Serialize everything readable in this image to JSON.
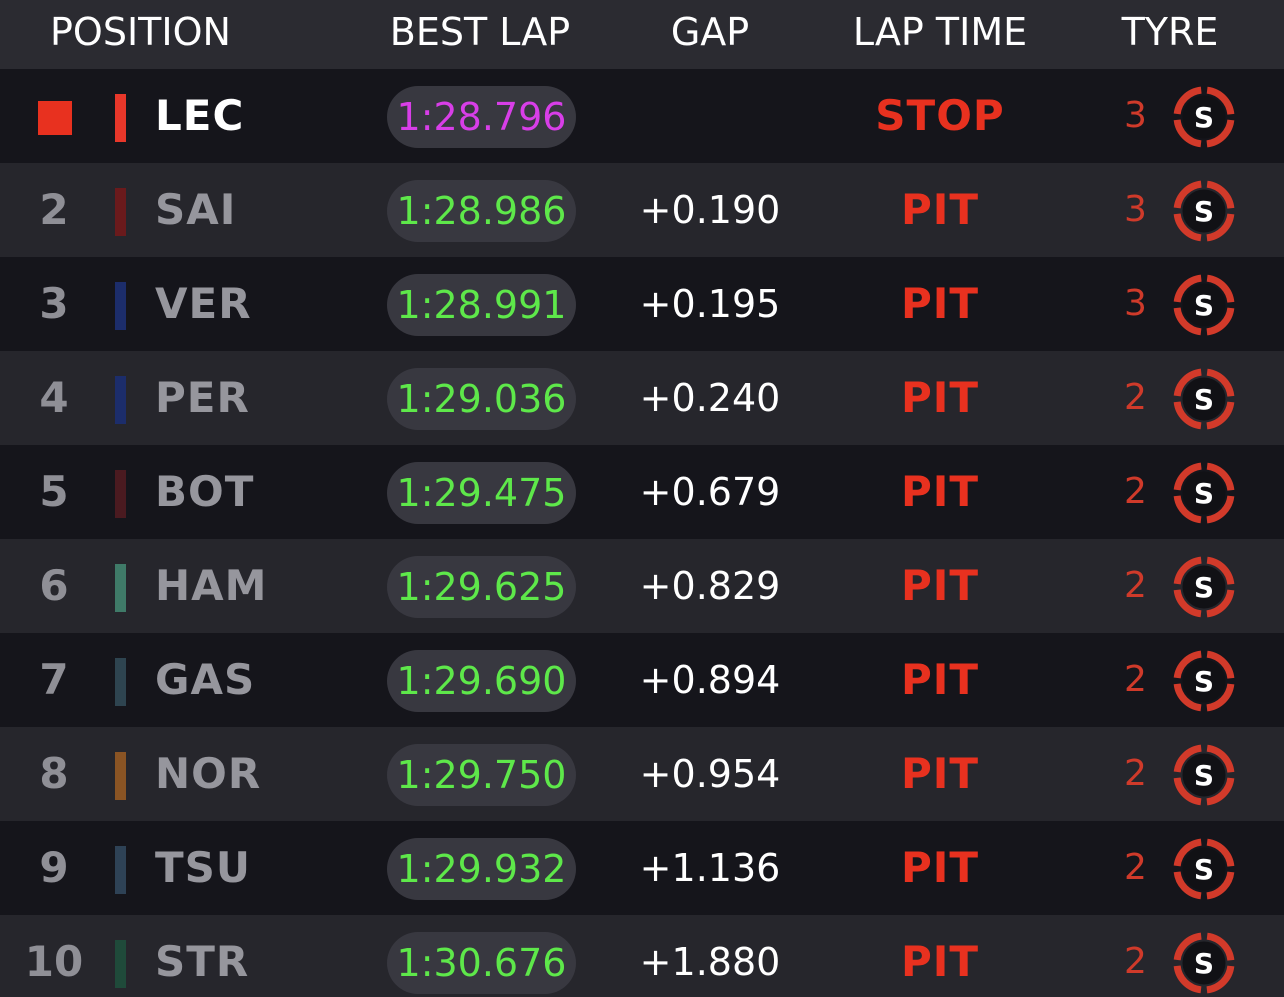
{
  "header": {
    "position": "POSITION",
    "best_lap": "BEST LAP",
    "gap": "GAP",
    "lap_time": "LAP TIME",
    "tyre": "TYRE"
  },
  "colors": {
    "fastest_lap": "#d83ee8",
    "personal_lap": "#5ee84a",
    "status_red": "#e8311f",
    "soft_tyre": "#d23a2a"
  },
  "rows": [
    {
      "position": "",
      "leader": true,
      "team_color": "#e8372a",
      "driver": "LEC",
      "best_lap": "1:28.796",
      "fastest": true,
      "gap": "",
      "status": "STOP",
      "tyre_laps": "3",
      "tyre_compound": "S",
      "tyre_icon": "soft-tyre-icon"
    },
    {
      "position": "2",
      "leader": false,
      "team_color": "#6a1a1c",
      "driver": "SAI",
      "best_lap": "1:28.986",
      "fastest": false,
      "gap": "+0.190",
      "status": "PIT",
      "tyre_laps": "3",
      "tyre_compound": "S",
      "tyre_icon": "soft-tyre-icon"
    },
    {
      "position": "3",
      "leader": false,
      "team_color": "#1c2d6b",
      "driver": "VER",
      "best_lap": "1:28.991",
      "fastest": false,
      "gap": "+0.195",
      "status": "PIT",
      "tyre_laps": "3",
      "tyre_compound": "S",
      "tyre_icon": "soft-tyre-icon"
    },
    {
      "position": "4",
      "leader": false,
      "team_color": "#1c2d6b",
      "driver": "PER",
      "best_lap": "1:29.036",
      "fastest": false,
      "gap": "+0.240",
      "status": "PIT",
      "tyre_laps": "2",
      "tyre_compound": "S",
      "tyre_icon": "soft-tyre-icon"
    },
    {
      "position": "5",
      "leader": false,
      "team_color": "#4a1a20",
      "driver": "BOT",
      "best_lap": "1:29.475",
      "fastest": false,
      "gap": "+0.679",
      "status": "PIT",
      "tyre_laps": "2",
      "tyre_compound": "S",
      "tyre_icon": "soft-tyre-icon"
    },
    {
      "position": "6",
      "leader": false,
      "team_color": "#3f7a68",
      "driver": "HAM",
      "best_lap": "1:29.625",
      "fastest": false,
      "gap": "+0.829",
      "status": "PIT",
      "tyre_laps": "2",
      "tyre_compound": "S",
      "tyre_icon": "soft-tyre-icon"
    },
    {
      "position": "7",
      "leader": false,
      "team_color": "#2e4450",
      "driver": "GAS",
      "best_lap": "1:29.690",
      "fastest": false,
      "gap": "+0.894",
      "status": "PIT",
      "tyre_laps": "2",
      "tyre_compound": "S",
      "tyre_icon": "soft-tyre-icon"
    },
    {
      "position": "8",
      "leader": false,
      "team_color": "#8a5424",
      "driver": "NOR",
      "best_lap": "1:29.750",
      "fastest": false,
      "gap": "+0.954",
      "status": "PIT",
      "tyre_laps": "2",
      "tyre_compound": "S",
      "tyre_icon": "soft-tyre-icon"
    },
    {
      "position": "9",
      "leader": false,
      "team_color": "#2e4256",
      "driver": "TSU",
      "best_lap": "1:29.932",
      "fastest": false,
      "gap": "+1.136",
      "status": "PIT",
      "tyre_laps": "2",
      "tyre_compound": "S",
      "tyre_icon": "soft-tyre-icon"
    },
    {
      "position": "10",
      "leader": false,
      "team_color": "#1f4a3a",
      "driver": "STR",
      "best_lap": "1:30.676",
      "fastest": false,
      "gap": "+1.880",
      "status": "PIT",
      "tyre_laps": "2",
      "tyre_compound": "S",
      "tyre_icon": "soft-tyre-icon"
    }
  ]
}
